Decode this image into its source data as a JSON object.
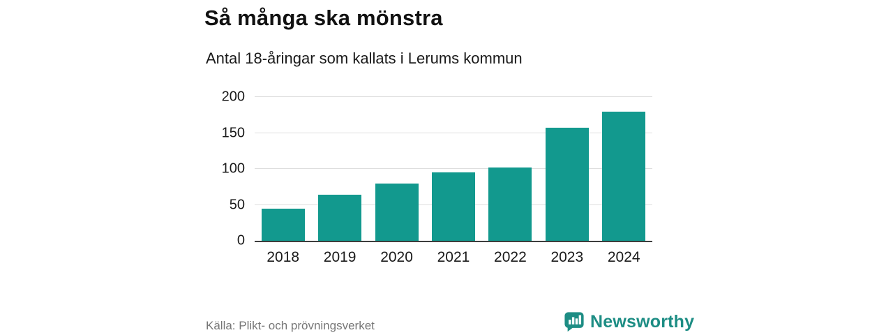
{
  "header": {
    "title": "Så många ska mönstra",
    "subtitle": "Antal 18-åringar som kallats i Lerums kommun"
  },
  "footer": {
    "source": "Källa: Plikt- och prövningsverket",
    "brand": "Newsworthy"
  },
  "colors": {
    "bar": "#12998e",
    "brand_teal": "#1d8d84",
    "axis": "#3d3d3d",
    "grid": "#dedede",
    "source_text": "#767676"
  },
  "chart_data": {
    "type": "bar",
    "title": "Så många ska mönstra",
    "subtitle": "Antal 18-åringar som kallats i Lerums kommun",
    "categories": [
      "2018",
      "2019",
      "2020",
      "2021",
      "2022",
      "2023",
      "2024"
    ],
    "values": [
      45,
      64,
      80,
      95,
      102,
      157,
      180
    ],
    "xlabel": "",
    "ylabel": "",
    "ylim": [
      0,
      200
    ],
    "yticks": [
      0,
      50,
      100,
      150,
      200
    ],
    "bar_color": "#12998e",
    "grid": true,
    "legend": false,
    "source": "Källa: Plikt- och prövningsverket"
  }
}
